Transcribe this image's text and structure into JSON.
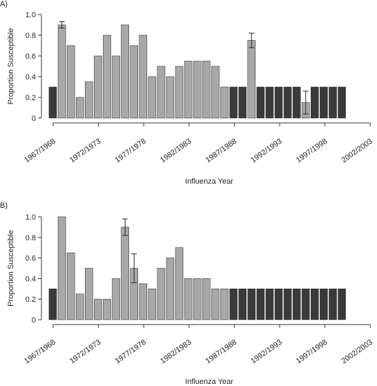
{
  "chart_data": [
    {
      "type": "bar",
      "panel_label": "A)",
      "ylabel": "Proportion Susceptible",
      "xlabel": "Influenza Year",
      "ylim": [
        0,
        1.0
      ],
      "yticks": [
        0,
        0.2,
        0.4,
        0.6,
        0.8,
        1.0
      ],
      "ytick_labels": [
        "0",
        "0.2",
        "0.4",
        "0.6",
        "0.8",
        "1.0"
      ],
      "xticks": [
        "1967/1968",
        "1972/1973",
        "1977/1978",
        "1982/1983",
        "1987/1988",
        "1992/1993",
        "1997/1998",
        "2002/2003"
      ],
      "grid": false,
      "legend": "none",
      "colors": {
        "light": "#a8a8a8",
        "dark": "#3a3a3a",
        "stroke": "#333333"
      },
      "series": [
        {
          "values": [
            0.3,
            0.9,
            0.7,
            0.2,
            0.35,
            0.6,
            0.8,
            0.6,
            0.9,
            0.7,
            0.8,
            0.4,
            0.5,
            0.4,
            0.5,
            0.55,
            0.55,
            0.55,
            0.5,
            0.3,
            0.3,
            0.3,
            0.75,
            0.3,
            0.3,
            0.3,
            0.3,
            0.3,
            0.15,
            0.3,
            0.3,
            0.3,
            0.3
          ],
          "shade": [
            "dark",
            "light",
            "light",
            "light",
            "light",
            "light",
            "light",
            "light",
            "light",
            "light",
            "light",
            "light",
            "light",
            "light",
            "light",
            "light",
            "light",
            "light",
            "light",
            "light",
            "dark",
            "dark",
            "light",
            "dark",
            "dark",
            "dark",
            "dark",
            "dark",
            "light",
            "dark",
            "dark",
            "dark",
            "dark"
          ],
          "error_bars": [
            {
              "index": 1,
              "low": 0.87,
              "high": 0.93
            },
            {
              "index": 22,
              "low": 0.68,
              "high": 0.82
            },
            {
              "index": 28,
              "low": 0.04,
              "high": 0.26
            }
          ]
        }
      ]
    },
    {
      "type": "bar",
      "panel_label": "B)",
      "ylabel": "Proportion Susceptible",
      "xlabel": "Influenza Year",
      "ylim": [
        0,
        1.0
      ],
      "yticks": [
        0,
        0.2,
        0.4,
        0.6,
        0.8,
        1.0
      ],
      "ytick_labels": [
        "0",
        "0.2",
        "0.4",
        "0.6",
        "0.8",
        "1.0"
      ],
      "xticks": [
        "1967/1968",
        "1972/1973",
        "1977/1978",
        "1982/1983",
        "1987/1988",
        "1992/1993",
        "1997/1998",
        "2002/2003"
      ],
      "grid": false,
      "legend": "none",
      "colors": {
        "light": "#a8a8a8",
        "dark": "#3a3a3a",
        "stroke": "#333333"
      },
      "series": [
        {
          "values": [
            0.3,
            1.0,
            0.65,
            0.25,
            0.5,
            0.2,
            0.2,
            0.4,
            0.9,
            0.5,
            0.35,
            0.3,
            0.5,
            0.6,
            0.7,
            0.4,
            0.4,
            0.4,
            0.3,
            0.3,
            0.3,
            0.3,
            0.3,
            0.3,
            0.3,
            0.3,
            0.3,
            0.3,
            0.3,
            0.3,
            0.3,
            0.3,
            0.3
          ],
          "shade": [
            "dark",
            "light",
            "light",
            "light",
            "light",
            "light",
            "light",
            "light",
            "light",
            "light",
            "light",
            "light",
            "light",
            "light",
            "light",
            "light",
            "light",
            "light",
            "light",
            "light",
            "dark",
            "dark",
            "dark",
            "dark",
            "dark",
            "dark",
            "dark",
            "dark",
            "dark",
            "dark",
            "dark",
            "dark",
            "dark"
          ],
          "error_bars": [
            {
              "index": 8,
              "low": 0.82,
              "high": 0.98
            },
            {
              "index": 9,
              "low": 0.36,
              "high": 0.64
            }
          ]
        }
      ]
    }
  ]
}
